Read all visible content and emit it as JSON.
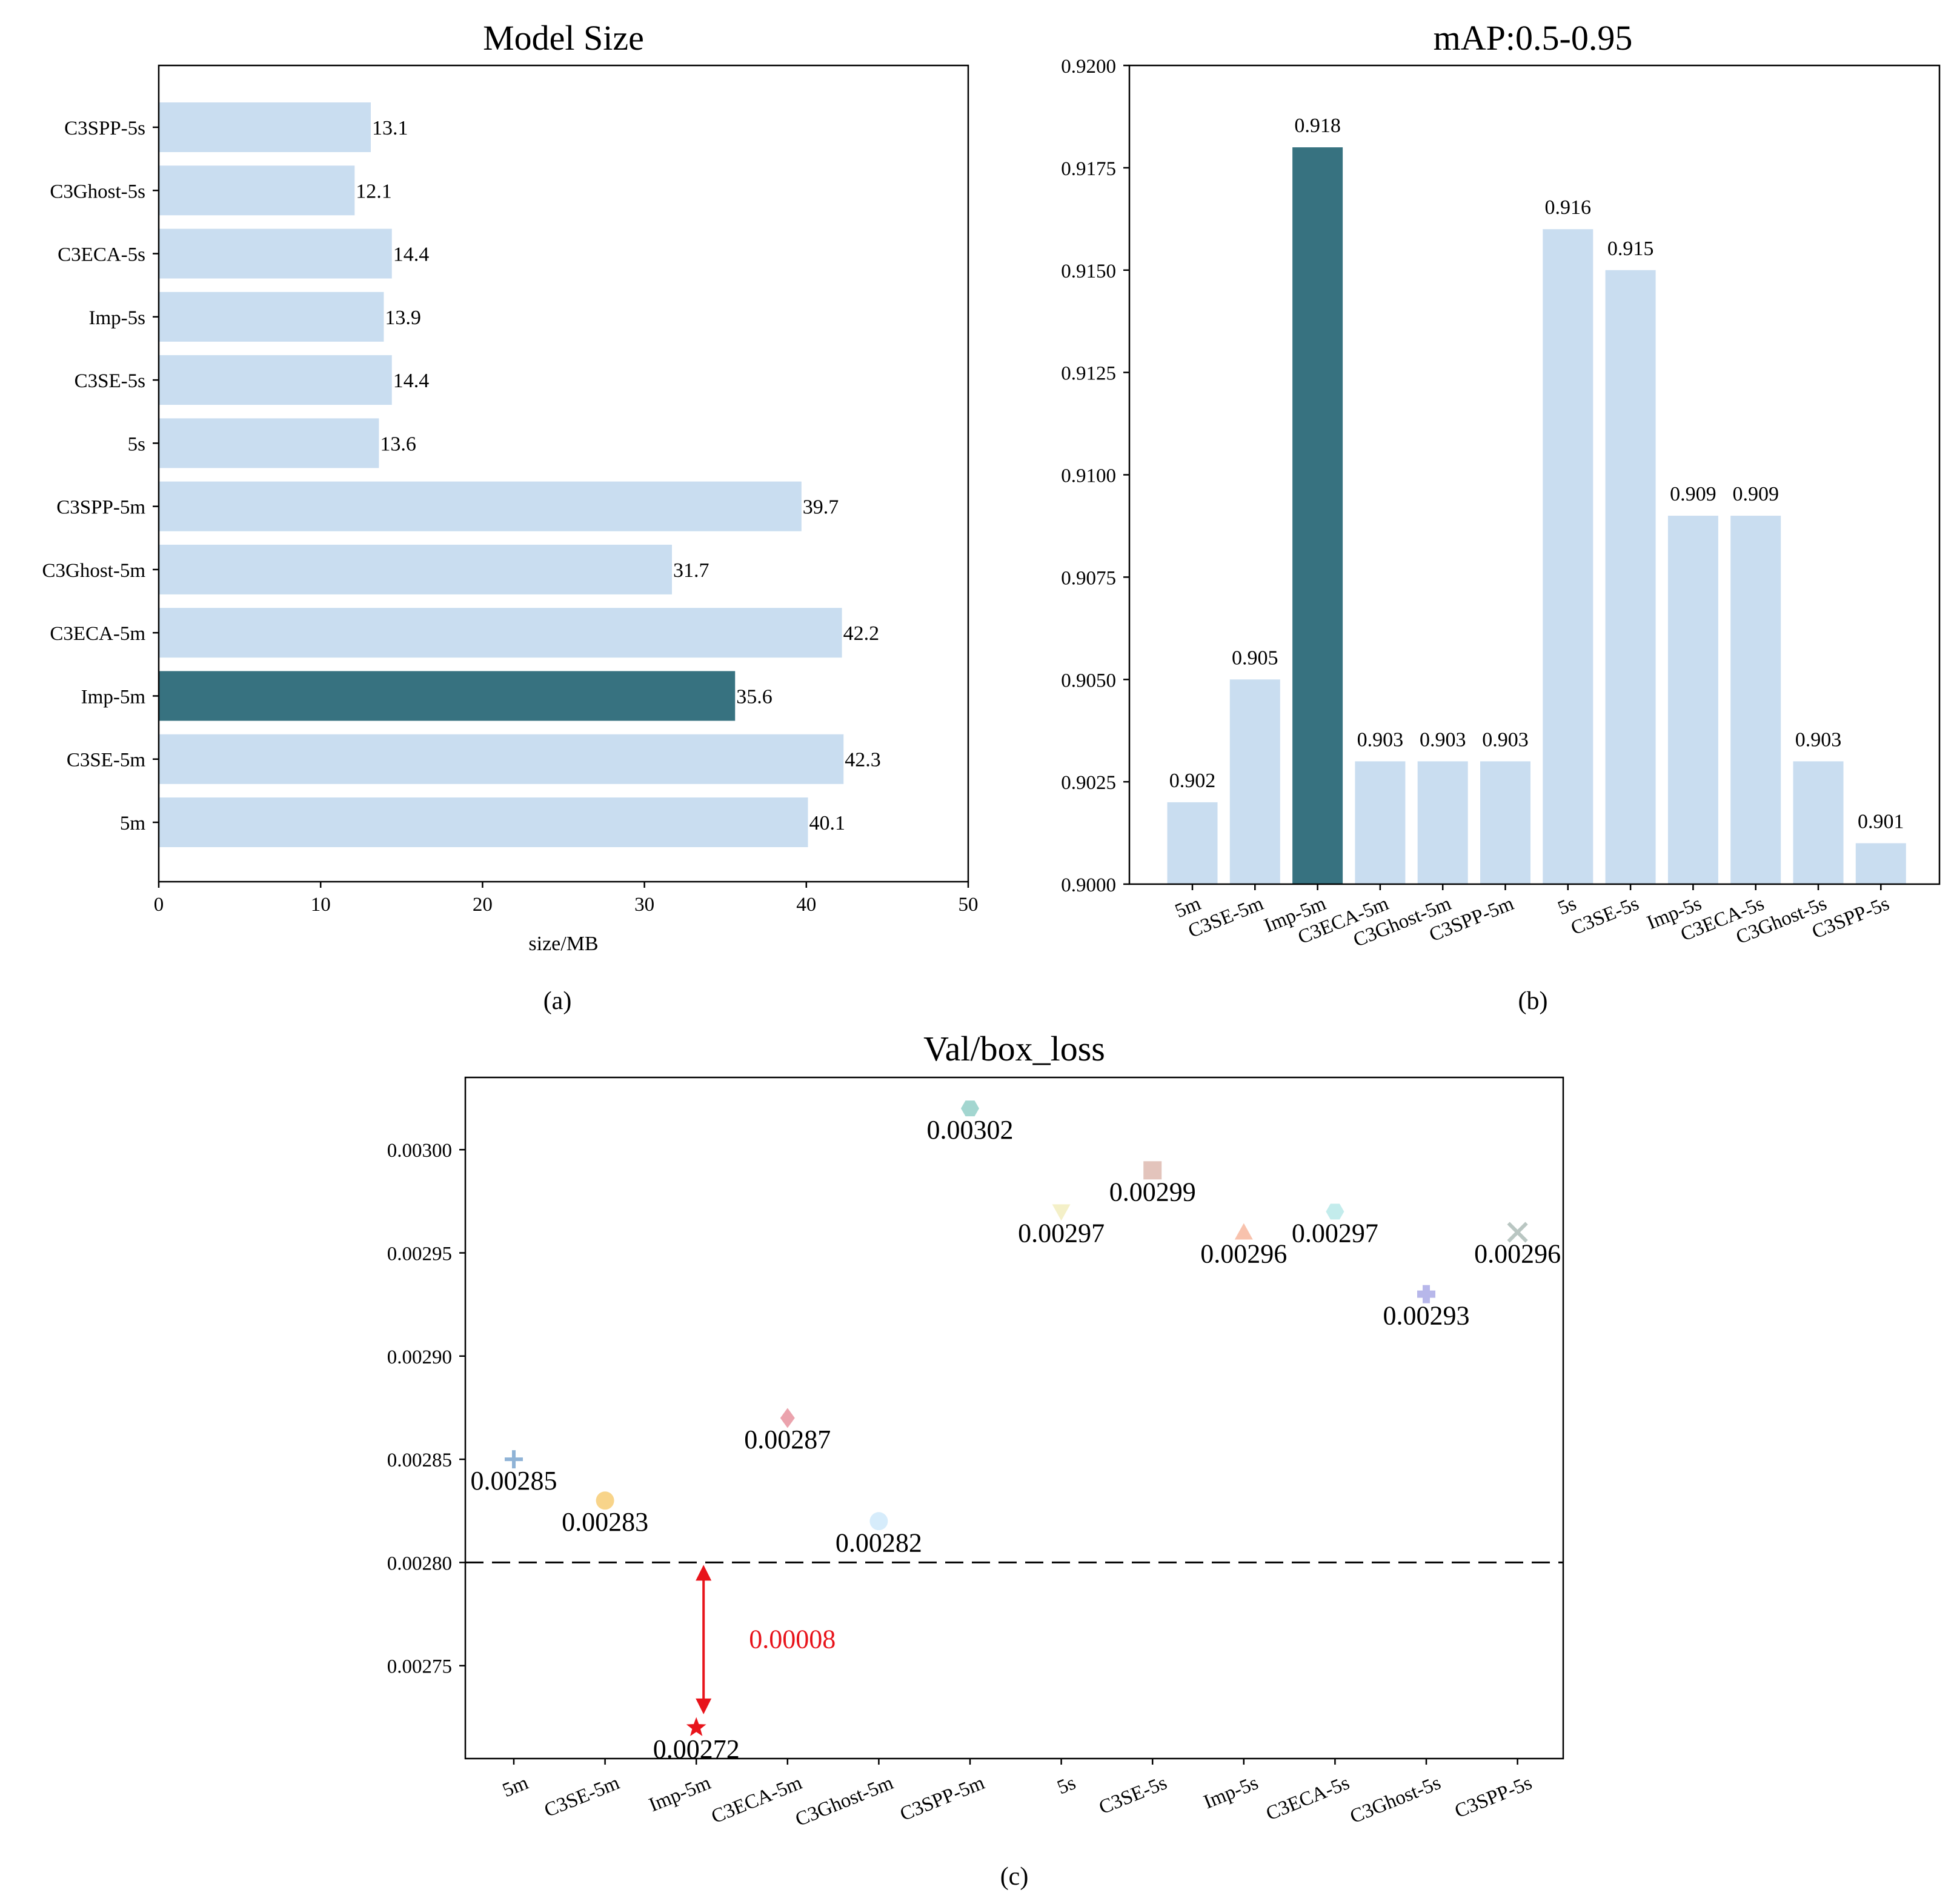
{
  "colors": {
    "bar": "#c9ddf0",
    "highlight": "#377280",
    "annotation": "#e8141b"
  },
  "chart_data": [
    {
      "id": "a",
      "type": "bar",
      "orientation": "horizontal",
      "title": "Model Size",
      "panel_label": "(a)",
      "xlabel": "size/MB",
      "ylabel": "",
      "xlim": [
        0,
        50
      ],
      "xticks": [
        0,
        10,
        20,
        30,
        40,
        50
      ],
      "categories": [
        "5m",
        "C3SE-5m",
        "Imp-5m",
        "C3ECA-5m",
        "C3Ghost-5m",
        "C3SPP-5m",
        "5s",
        "C3SE-5s",
        "Imp-5s",
        "C3ECA-5s",
        "C3Ghost-5s",
        "C3SPP-5s"
      ],
      "values": [
        40.1,
        42.3,
        35.6,
        42.2,
        31.7,
        39.7,
        13.6,
        14.4,
        13.9,
        14.4,
        12.1,
        13.1
      ],
      "value_labels": [
        "40.1",
        "42.3",
        "35.6",
        "42.2",
        "31.7",
        "39.7",
        "13.6",
        "14.4",
        "13.9",
        "14.4",
        "12.1",
        "13.1"
      ],
      "highlight": "Imp-5m"
    },
    {
      "id": "b",
      "type": "bar",
      "orientation": "vertical",
      "title": "mAP:0.5-0.95",
      "panel_label": "(b)",
      "xlabel": "",
      "ylabel": "",
      "ylim": [
        0.9,
        0.92
      ],
      "yticks": [
        "0.9000",
        "0.9025",
        "0.9050",
        "0.9075",
        "0.9100",
        "0.9125",
        "0.9150",
        "0.9175",
        "0.9200"
      ],
      "categories": [
        "5m",
        "C3SE-5m",
        "Imp-5m",
        "C3ECA-5m",
        "C3Ghost-5m",
        "C3SPP-5m",
        "5s",
        "C3SE-5s",
        "Imp-5s",
        "C3ECA-5s",
        "C3Ghost-5s",
        "C3SPP-5s"
      ],
      "values": [
        0.902,
        0.905,
        0.918,
        0.903,
        0.903,
        0.903,
        0.916,
        0.915,
        0.909,
        0.909,
        0.903,
        0.901
      ],
      "value_labels": [
        "0.902",
        "0.905",
        "0.918",
        "0.903",
        "0.903",
        "0.903",
        "0.916",
        "0.915",
        "0.909",
        "0.909",
        "0.903",
        "0.901"
      ],
      "highlight": "Imp-5m"
    },
    {
      "id": "c",
      "type": "scatter",
      "title": "Val/box_loss",
      "panel_label": "(c)",
      "xlabel": "",
      "ylabel": "",
      "ylim": [
        0.002705,
        0.003035
      ],
      "yticks": [
        "0.00275",
        "0.00280",
        "0.00285",
        "0.00290",
        "0.00295",
        "0.00300"
      ],
      "categories": [
        "5m",
        "C3SE-5m",
        "Imp-5m",
        "C3ECA-5m",
        "C3Ghost-5m",
        "C3SPP-5m",
        "5s",
        "C3SE-5s",
        "Imp-5s",
        "C3ECA-5s",
        "C3Ghost-5s",
        "C3SPP-5s"
      ],
      "values": [
        0.00285,
        0.00283,
        0.00272,
        0.00287,
        0.00282,
        0.00302,
        0.00297,
        0.00299,
        0.00296,
        0.00297,
        0.00293,
        0.00296
      ],
      "value_labels": [
        "0.00285",
        "0.00283",
        "0.00272",
        "0.00287",
        "0.00282",
        "0.00302",
        "0.00297",
        "0.00299",
        "0.00296",
        "0.00297",
        "0.00293",
        "0.00296"
      ],
      "markers": [
        "plus",
        "circle",
        "star",
        "diamond",
        "circle",
        "hexagon",
        "triangle-down",
        "square",
        "triangle-up",
        "hexagon",
        "plus-filled",
        "x"
      ],
      "marker_colors": [
        "#8fb3d6",
        "#f8d48a",
        "#e8141b",
        "#eba3ad",
        "#d6ecfb",
        "#a3d6d0",
        "#f4f0c8",
        "#e3c4bc",
        "#f8c2ad",
        "#c3ecec",
        "#b7b7ea",
        "#b9c6c2"
      ],
      "reference_line": 0.0028,
      "difference_label": "0.00008"
    }
  ]
}
